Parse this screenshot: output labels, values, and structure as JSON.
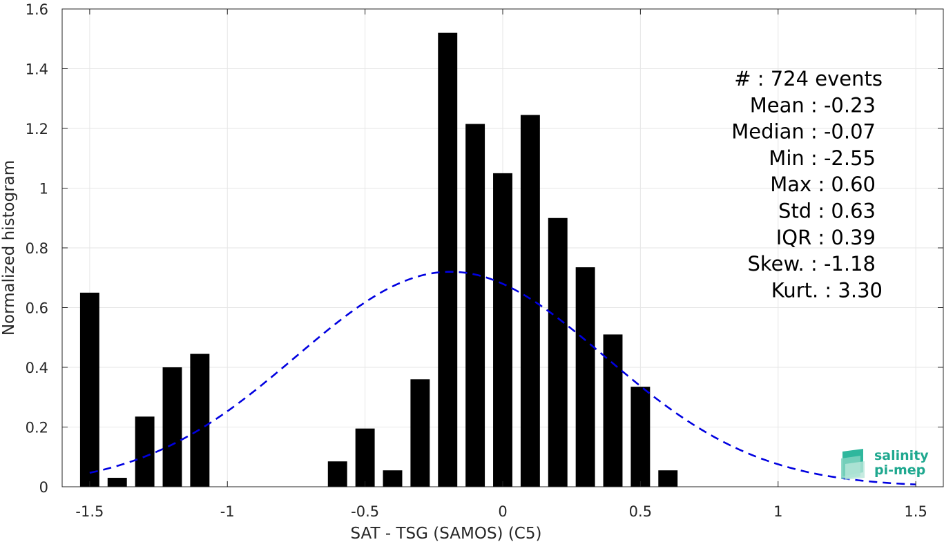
{
  "chart_data": {
    "type": "bar",
    "xlabel": "SAT - TSG (SAMOS) (C5)",
    "ylabel": "Normalized histogram",
    "xlim": [
      -1.6,
      1.6
    ],
    "ylim": [
      0,
      1.6
    ],
    "xticks": [
      -1.5,
      -1,
      -0.5,
      0,
      0.5,
      1,
      1.5
    ],
    "xtick_labels": [
      "-1.5",
      "-1",
      "-0.5",
      "0",
      "0.5",
      "1",
      "1.5"
    ],
    "yticks": [
      0,
      0.2,
      0.4,
      0.6,
      0.8,
      1,
      1.2,
      1.4,
      1.6
    ],
    "ytick_labels": [
      "0",
      "0.2",
      "0.4",
      "0.6",
      "0.8",
      "1",
      "1.2",
      "1.4",
      "1.6"
    ],
    "grid": true,
    "bar_color": "#000000",
    "bar_width": 0.07,
    "bars": [
      {
        "x": -1.5,
        "y": 0.65
      },
      {
        "x": -1.4,
        "y": 0.03
      },
      {
        "x": -1.3,
        "y": 0.235
      },
      {
        "x": -1.2,
        "y": 0.4
      },
      {
        "x": -1.1,
        "y": 0.445
      },
      {
        "x": -0.6,
        "y": 0.085
      },
      {
        "x": -0.5,
        "y": 0.195
      },
      {
        "x": -0.4,
        "y": 0.055
      },
      {
        "x": -0.3,
        "y": 0.36
      },
      {
        "x": -0.2,
        "y": 1.52
      },
      {
        "x": -0.1,
        "y": 1.215
      },
      {
        "x": 0.0,
        "y": 1.05
      },
      {
        "x": 0.1,
        "y": 1.245
      },
      {
        "x": 0.2,
        "y": 0.9
      },
      {
        "x": 0.3,
        "y": 0.735
      },
      {
        "x": 0.4,
        "y": 0.51
      },
      {
        "x": 0.5,
        "y": 0.335
      },
      {
        "x": 0.6,
        "y": 0.055
      }
    ],
    "fit_curve": {
      "style": "dashed",
      "color": "#0000e0",
      "mean": -0.19,
      "std": 0.56,
      "peak": 0.72,
      "x_range": [
        -1.5,
        1.5
      ]
    },
    "stats": [
      "#  : 724 events",
      "Mean : -0.23",
      "Median : -0.07",
      "Min : -2.55",
      "Max : 0.60",
      "Std : 0.63",
      "IQR : 0.39",
      "Skew. : -1.18",
      "Kurt. : 3.30"
    ]
  },
  "logo": {
    "line1": "salinity",
    "line2": "pi-mep",
    "color": "#1fa88f"
  }
}
